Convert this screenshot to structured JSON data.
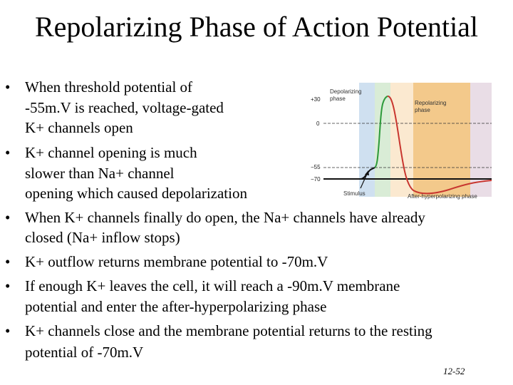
{
  "slide": {
    "title": "Repolarizing Phase of Action Potential",
    "slide_number": "12-52"
  },
  "bullets": [
    {
      "lines": [
        "When threshold potential of",
        "-55m.V is reached, voltage-gated",
        " K+ channels open"
      ]
    },
    {
      "lines": [
        "K+ channel opening is much",
        "slower than Na+ channel",
        "opening which caused depolarization"
      ]
    },
    {
      "lines": [
        "When K+ channels finally do open, the Na+ channels have already",
        "closed (Na+ inflow stops)"
      ]
    },
    {
      "lines": [
        "K+ outflow returns membrane potential to -70m.V"
      ]
    },
    {
      "lines": [
        "If enough K+ leaves the cell, it will reach a -90m.V membrane",
        "potential and enter the after-hyperpolarizing phase"
      ]
    },
    {
      "lines": [
        "K+ channels close and the membrane potential returns to the resting",
        "potential of -70m.V"
      ]
    }
  ],
  "figure": {
    "y_ticks": [
      "+30",
      "0",
      "−55",
      "−70"
    ],
    "labels": {
      "depolarizing_1": "Depolarizing",
      "depolarizing_2": "phase",
      "repolarizing_1": "Repolarizing",
      "repolarizing_2": "phase",
      "stimulus": "Stimulus",
      "after_hyper": "After-hyperpolarizing phase"
    },
    "colors": {
      "band_blue": "#cfe0f0",
      "band_green": "#d9ecd6",
      "band_cream": "#fbe9d0",
      "band_orange": "#f3c98b",
      "band_pink": "#e9dde6",
      "trace_green": "#2c9a3a",
      "trace_red": "#c8362f"
    }
  }
}
